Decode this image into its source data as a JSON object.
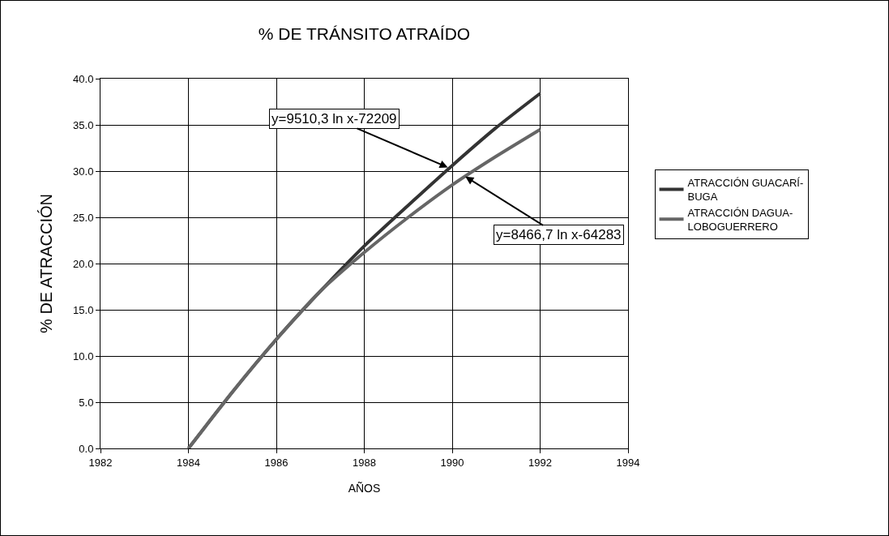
{
  "chart_data": {
    "type": "line",
    "title": "% DE TRÁNSITO ATRAÍDO",
    "xlabel": "AÑOS",
    "ylabel": "% DE ATRACCIÓN",
    "x": [
      1984,
      1985,
      1986,
      1987,
      1988,
      1989,
      1990,
      1991,
      1992
    ],
    "series": [
      {
        "name": "ATRACCIÓN GUACARÍ-BUGA",
        "color": "#333333",
        "values": [
          0,
          6.1,
          11.8,
          17.0,
          21.9,
          26.3,
          30.6,
          34.7,
          38.4
        ]
      },
      {
        "name": "ATRACCIÓN DAGUA-LOBOGUERRERO",
        "color": "#666666",
        "values": [
          0,
          6.1,
          11.8,
          17.0,
          21.2,
          25.0,
          28.5,
          31.6,
          34.5
        ]
      }
    ],
    "xlim": [
      1982,
      1994
    ],
    "xticks": [
      1982,
      1984,
      1986,
      1988,
      1990,
      1992,
      1994
    ],
    "ylim": [
      0,
      40
    ],
    "yticks": [
      {
        "value": 0,
        "label": "0.0"
      },
      {
        "value": 5,
        "label": "5.0"
      },
      {
        "value": 10,
        "label": "10.0"
      },
      {
        "value": 15,
        "label": "15.0"
      },
      {
        "value": 20,
        "label": "20.0"
      },
      {
        "value": 25,
        "label": "25.0"
      },
      {
        "value": 30,
        "label": "30.0"
      },
      {
        "value": 35,
        "label": "35.0"
      },
      {
        "value": 40,
        "label": "40.0"
      }
    ],
    "annotations": [
      {
        "text": "y=9510,3 ln x-72209",
        "x": 1989.9,
        "y": 30.4
      },
      {
        "text": "y=8466,7 ln x-64283",
        "x": 1990.3,
        "y": 29.4
      }
    ],
    "grid": true,
    "legend": "right",
    "marker": "none",
    "line_style": "solid"
  }
}
